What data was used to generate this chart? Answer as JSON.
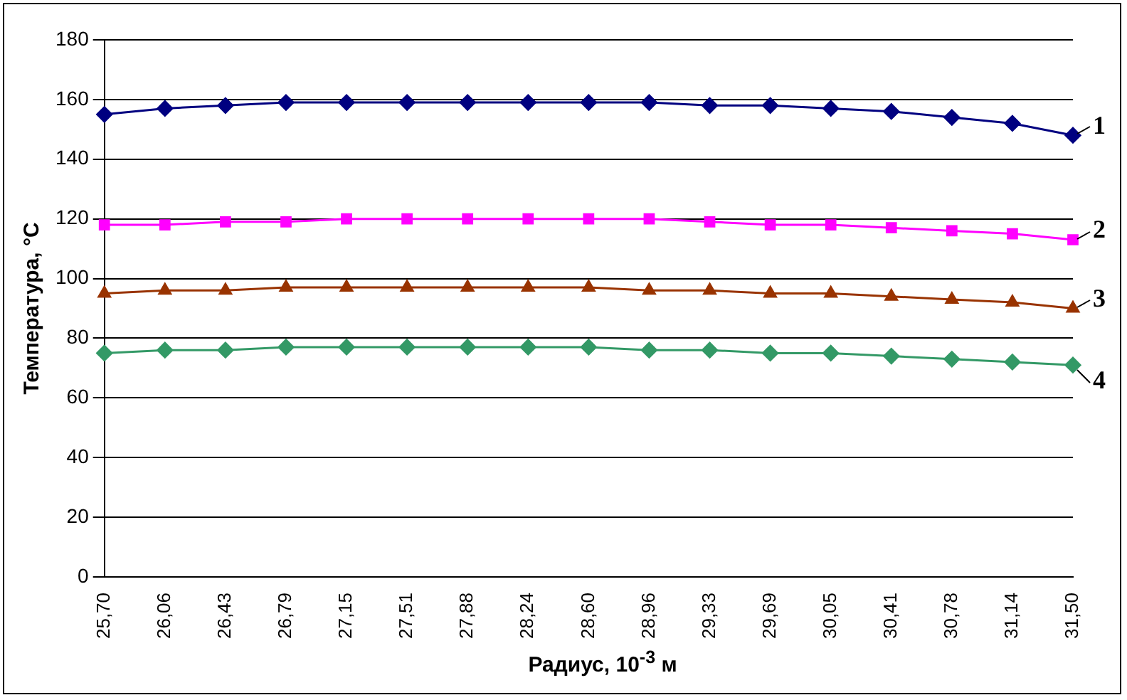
{
  "chart_data": {
    "type": "line",
    "xlabel": "Радиус, 10$^{-3}$ м",
    "ylabel": "Температура, °С",
    "categories": [
      "25,70",
      "26,06",
      "26,43",
      "26,79",
      "27,15",
      "27,51",
      "27,88",
      "28,24",
      "28,60",
      "28,96",
      "29,33",
      "29,69",
      "30,05",
      "30,41",
      "30,78",
      "31,14",
      "31,50"
    ],
    "series": [
      {
        "name": "1",
        "color": "#000080",
        "marker": "diamond",
        "values": [
          155,
          157,
          158,
          159,
          159,
          159,
          159,
          159,
          159,
          159,
          158,
          158,
          157,
          156,
          154,
          152,
          148
        ]
      },
      {
        "name": "2",
        "color": "#ff00ff",
        "marker": "square",
        "values": [
          118,
          118,
          119,
          119,
          120,
          120,
          120,
          120,
          120,
          120,
          119,
          118,
          118,
          117,
          116,
          115,
          113
        ]
      },
      {
        "name": "3",
        "color": "#993300",
        "marker": "triangle",
        "values": [
          95,
          96,
          96,
          97,
          97,
          97,
          97,
          97,
          97,
          96,
          96,
          95,
          95,
          94,
          93,
          92,
          90
        ]
      },
      {
        "name": "4",
        "color": "#339966",
        "marker": "diamond",
        "values": [
          75,
          76,
          76,
          77,
          77,
          77,
          77,
          77,
          77,
          76,
          76,
          75,
          75,
          74,
          73,
          72,
          71
        ]
      }
    ],
    "ylim": [
      0,
      180
    ],
    "yticks": [
      0,
      20,
      40,
      60,
      80,
      100,
      120,
      140,
      160,
      180
    ],
    "grid": "y",
    "legend": false,
    "line_style": "solid"
  }
}
